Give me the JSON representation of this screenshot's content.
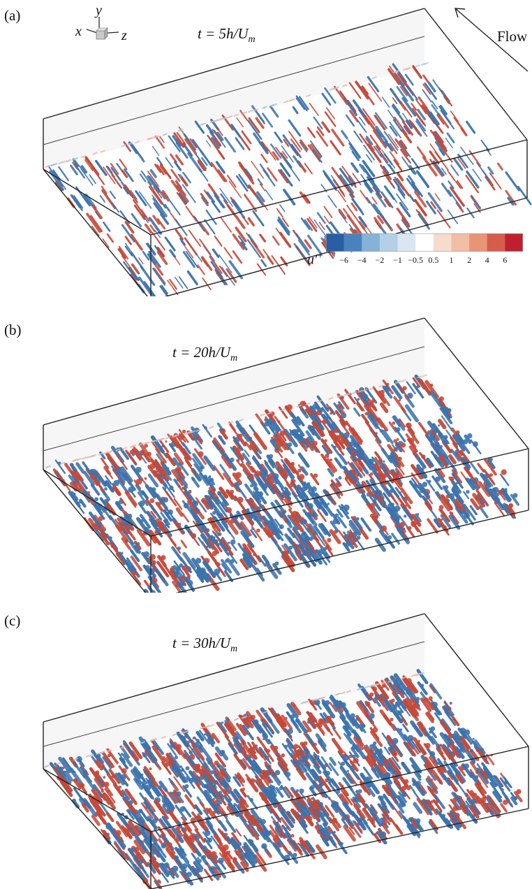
{
  "panels": [
    {
      "label": "(a)",
      "time_prefix": "t = 5h/U",
      "time_sub": "m",
      "density": 0.35,
      "relief": false
    },
    {
      "label": "(b)",
      "time_prefix": "t = 20h/U",
      "time_sub": "m",
      "density": 0.75,
      "relief": true
    },
    {
      "label": "(c)",
      "time_prefix": "t = 30h/U",
      "time_sub": "m",
      "density": 0.9,
      "relief": true
    }
  ],
  "axes": {
    "x": "x",
    "y": "y",
    "z": "z"
  },
  "flow_label": "Flow",
  "colorbar": {
    "title": "u′",
    "title_sup": "+",
    "ticks": [
      "−6",
      "−4",
      "−2",
      "−1",
      "−0.5",
      "0.5",
      "1",
      "2",
      "4",
      "6"
    ],
    "colors": [
      "#2a5ea4",
      "#4a82bd",
      "#86b2d8",
      "#b4d0e6",
      "#dae7f2",
      "#ffffff",
      "#f7dccd",
      "#f3bea6",
      "#e89576",
      "#d85c4a",
      "#bf2030"
    ]
  },
  "colors": {
    "blue": "#3c73ad",
    "red": "#c64838",
    "edge": "#222222",
    "wall": "#f6f6f6"
  }
}
